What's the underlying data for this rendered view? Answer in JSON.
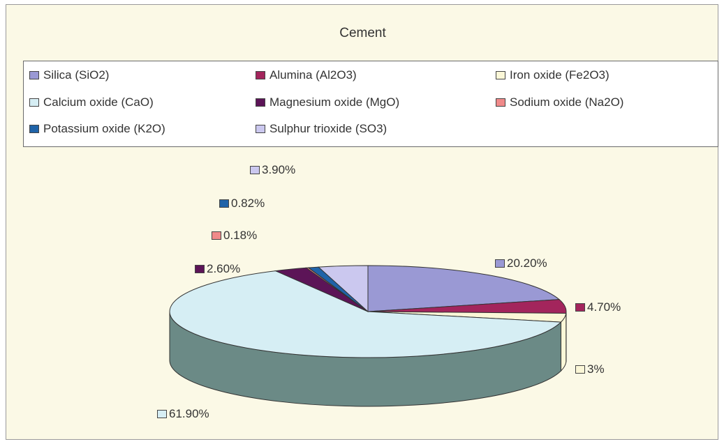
{
  "chart_data": {
    "type": "pie",
    "title": "Cement",
    "legend_position": "top",
    "three_d": true,
    "series": [
      {
        "name": "Silica (SiO2)",
        "value": 20.2,
        "label": "20.20%",
        "color": "#9a99d4"
      },
      {
        "name": "Alumina (Al2O3)",
        "value": 4.7,
        "label": "4.70%",
        "color": "#a3255c"
      },
      {
        "name": "Iron oxide (Fe2O3)",
        "value": 3,
        "label": "3%",
        "color": "#fbf7d7"
      },
      {
        "name": "Calcium oxide (CaO)",
        "value": 61.9,
        "label": "61.90%",
        "color": "#d6eef4"
      },
      {
        "name": "Magnesium oxide (MgO)",
        "value": 2.6,
        "label": "2.60%",
        "color": "#5c1457"
      },
      {
        "name": "Sodium oxide (Na2O)",
        "value": 0.18,
        "label": "0.18%",
        "color": "#f08a8a"
      },
      {
        "name": "Potassium oxide (K2O)",
        "value": 0.82,
        "label": "0.82%",
        "color": "#1f63a8"
      },
      {
        "name": "Sulphur trioxide (SO3)",
        "value": 3.9,
        "label": "3.90%",
        "color": "#cbc8ef"
      }
    ],
    "side_color": "#6b8a86"
  }
}
